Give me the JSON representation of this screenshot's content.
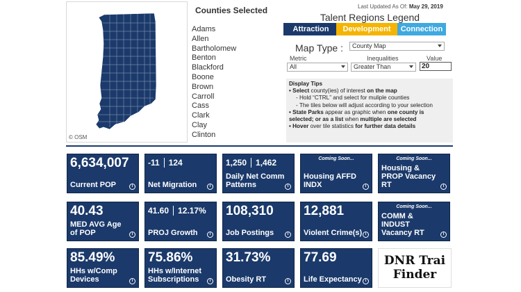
{
  "map": {
    "attribution": "© OSM",
    "colors": {
      "county_fill": "#1b3a6b",
      "county_border": "#ffffff"
    }
  },
  "counties": {
    "title": "Counties Selected",
    "items": [
      "Adams",
      "Allen",
      "Bartholomew",
      "Benton",
      "Blackford",
      "Boone",
      "Brown",
      "Carroll",
      "Cass",
      "Clark",
      "Clay",
      "Clinton"
    ]
  },
  "header": {
    "last_updated_label": "Last Updated As Of:",
    "last_updated_value": "May 29, 2019"
  },
  "legend": {
    "title": "Talent Regions Legend",
    "items": [
      {
        "label": "Attraction",
        "color": "#1b3a6b"
      },
      {
        "label": "Development",
        "color": "#f4b400"
      },
      {
        "label": "Connection",
        "color": "#3fa9e0"
      }
    ]
  },
  "controls": {
    "map_type_label": "Map Type :",
    "map_type_value": "County Map",
    "metric_label": "Metric",
    "metric_value": "All",
    "inequalities_label": "Inequalities",
    "inequalities_value": "Greater Than",
    "value_label": "Value",
    "value_value": "20"
  },
  "tips": {
    "title": "Display Tips",
    "line1_a": "• Select",
    "line1_b": " county(ies) of interest ",
    "line1_c": "on the map",
    "line2": "- Hold “CTRL” and select for muliple counties",
    "line3": "- The tiles below will adjust according to your selection",
    "line4_a": "• State Parks",
    "line4_b": " appear as graphic when ",
    "line4_c": "one county is selected",
    "line4_d": "; or as a list ",
    "line4_e": "when ",
    "line4_f": "multiple are selected",
    "line5_a": "• Hover",
    "line5_b": " over tile statistics ",
    "line5_c": "for further data details"
  },
  "tiles": {
    "current_pop": {
      "value": "6,634,007",
      "label": "Current POP"
    },
    "net_migration": {
      "value_a": "-11",
      "value_b": "124",
      "label": "Net Migration"
    },
    "daily_net_comm": {
      "value_a": "1,250",
      "value_b": "1,462",
      "label": "Daily Net Comm Patterns"
    },
    "housing_affd": {
      "soon": "Coming Soon...",
      "label": "Housing AFFD INDX"
    },
    "housing_prop": {
      "soon": "Coming Soon...",
      "label": "Housing & PROP Vacancy RT"
    },
    "med_age": {
      "value": "40.43",
      "label": "MED AVG Age of POP"
    },
    "proj_growth": {
      "value_a": "41.60",
      "value_b": "12.17%",
      "label": "PROJ Growth"
    },
    "job_postings": {
      "value": "108,310",
      "label": "Job Postings"
    },
    "violent_crime": {
      "value": "12,881",
      "label": "Violent Crime(s)"
    },
    "comm_indust": {
      "soon": "Coming Soon...",
      "label": "COMM & INDUST Vacancy RT"
    },
    "hh_comp": {
      "value": "85.49%",
      "label": "HHs w/Comp Devices"
    },
    "hh_internet": {
      "value": "75.86%",
      "label": "HHs w/Internet Subscriptions"
    },
    "obesity": {
      "value": "31.73%",
      "label": "Obesity RT"
    },
    "life_exp": {
      "value": "77.69",
      "label": "Life Expectancy"
    },
    "info_icon": "i"
  },
  "dnr": {
    "line1": "DNR Trai",
    "line2": "Finder"
  }
}
